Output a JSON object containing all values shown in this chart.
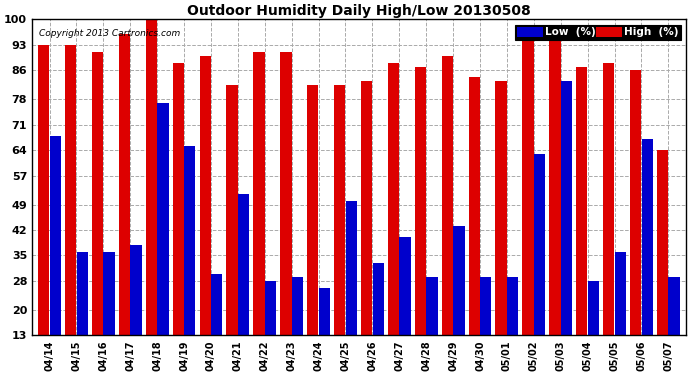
{
  "title": "Outdoor Humidity Daily High/Low 20130508",
  "copyright": "Copyright 2013 Cartronics.com",
  "legend_low": "Low  (%)",
  "legend_high": "High  (%)",
  "low_color": "#0000cc",
  "high_color": "#dd0000",
  "bg_color": "#ffffff",
  "plot_bg_color": "#ffffff",
  "grid_color": "#aaaaaa",
  "dates": [
    "04/14",
    "04/15",
    "04/16",
    "04/17",
    "04/18",
    "04/19",
    "04/20",
    "04/21",
    "04/22",
    "04/23",
    "04/24",
    "04/25",
    "04/26",
    "04/27",
    "04/28",
    "04/29",
    "04/30",
    "05/01",
    "05/02",
    "05/03",
    "05/04",
    "05/05",
    "05/06",
    "05/07"
  ],
  "high_values": [
    93,
    93,
    91,
    96,
    100,
    88,
    90,
    82,
    91,
    91,
    82,
    82,
    83,
    88,
    87,
    90,
    84,
    83,
    98,
    97,
    87,
    88,
    86,
    64
  ],
  "low_values": [
    68,
    36,
    36,
    38,
    77,
    65,
    30,
    52,
    28,
    29,
    26,
    50,
    33,
    40,
    29,
    43,
    29,
    29,
    63,
    83,
    28,
    36,
    67,
    29
  ],
  "ylim_min": 13,
  "ylim_max": 100,
  "bar_bottom": 13,
  "yticks": [
    13,
    20,
    28,
    35,
    42,
    49,
    57,
    64,
    71,
    78,
    86,
    93,
    100
  ]
}
